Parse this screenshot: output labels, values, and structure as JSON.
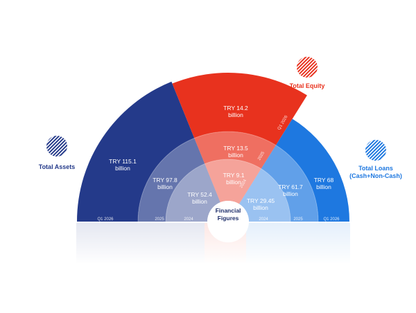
{
  "chart_data": {
    "type": "radial-bar",
    "center_label": [
      "Financial",
      "Figures"
    ],
    "colors": {
      "assets": "#243a8a",
      "equity": "#e8321e",
      "loans": "#1e78e0"
    },
    "series": [
      {
        "name": "Total Assets",
        "values": [
          {
            "period": "Q1 2026",
            "label": [
              "TRY 115.1",
              "billion"
            ],
            "value": 115.1
          },
          {
            "period": "2025",
            "label": [
              "TRY 97.8",
              "billion"
            ],
            "value": 97.8
          },
          {
            "period": "2024",
            "label": [
              "TRY 52.4",
              "billion"
            ],
            "value": 52.4
          }
        ]
      },
      {
        "name": "Total Equity",
        "values": [
          {
            "period": "Q1 2026",
            "label": [
              "TRY 14.2",
              "billion"
            ],
            "value": 14.2
          },
          {
            "period": "2025",
            "label": [
              "TRY 13.5",
              "billion"
            ],
            "value": 13.5
          },
          {
            "period": "2024",
            "label": [
              "TRY 9.1",
              "billion"
            ],
            "value": 9.1
          }
        ]
      },
      {
        "name": "Total Loans",
        "name_lines": [
          "Total Loans",
          "(Cash+Non-Cash)"
        ],
        "values": [
          {
            "period": "Q1 2026",
            "label": [
              "TRY 68",
              "billion"
            ],
            "value": 68
          },
          {
            "period": "2025",
            "label": [
              "TRY 61.7",
              "billion"
            ],
            "value": 61.7
          },
          {
            "period": "2024",
            "label": [
              "TRY 29.45",
              "billion"
            ],
            "value": 29.45
          }
        ]
      }
    ]
  }
}
